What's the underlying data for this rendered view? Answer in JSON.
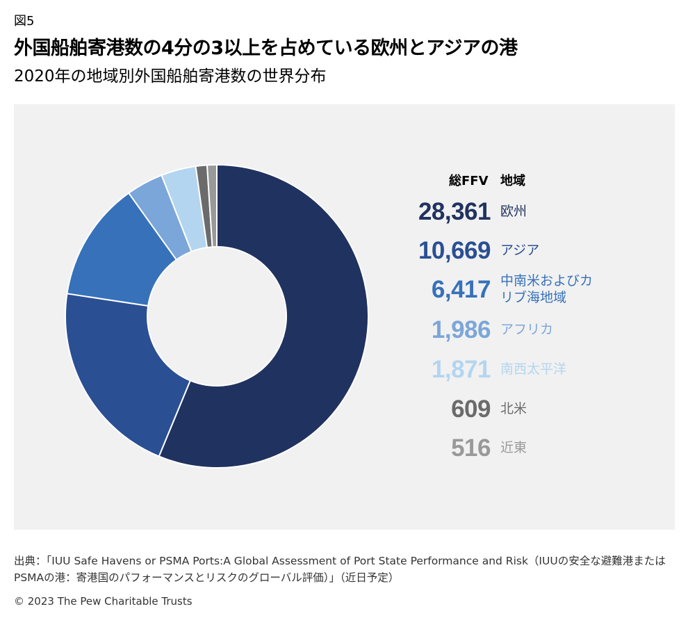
{
  "figure_label": "図5",
  "title": "外国船舶寄港数の4分の3以上を占めている欧州とアジアの港",
  "subtitle": "2020年の地域別外国船舶寄港数の世界分布",
  "legend_headers": {
    "total": "総FFV",
    "region": "地域"
  },
  "chart_data": {
    "type": "donut",
    "title": "外国船舶寄港数の4分の3以上を占めている欧州とアジアの港",
    "subtitle": "2020年の地域別外国船舶寄港数の世界分布",
    "categories": [
      "欧州",
      "アジア",
      "中南米およびカリブ海地域",
      "アフリカ",
      "南西太平洋",
      "北米",
      "近東"
    ],
    "values": [
      28361,
      10669,
      6417,
      1986,
      1871,
      609,
      516
    ],
    "value_labels": [
      "28,361",
      "10,669",
      "6,417",
      "1,986",
      "1,871",
      "609",
      "516"
    ],
    "label_lines": [
      [
        "欧州"
      ],
      [
        "アジア"
      ],
      [
        "中南米およびカ",
        "リブ海地域"
      ],
      [
        "アフリカ"
      ],
      [
        "南西太平洋"
      ],
      [
        "北米"
      ],
      [
        "近東"
      ]
    ],
    "colors": [
      "#20325f",
      "#2a4f93",
      "#3671ba",
      "#7ba6d9",
      "#b3d5f0",
      "#6b6b6b",
      "#999999"
    ],
    "start_angle_deg": 0,
    "direction": "clockwise",
    "legend_position": "right"
  },
  "source": "出典：「IUU Safe Havens or PSMA Ports:A Global Assessment of Port State Performance and Risk（IUUの安全な避難港またはPSMAの港：寄港国のパフォーマンスとリスクのグローバル評価）」（近日予定）",
  "copyright": "© 2023 The Pew Charitable Trusts"
}
